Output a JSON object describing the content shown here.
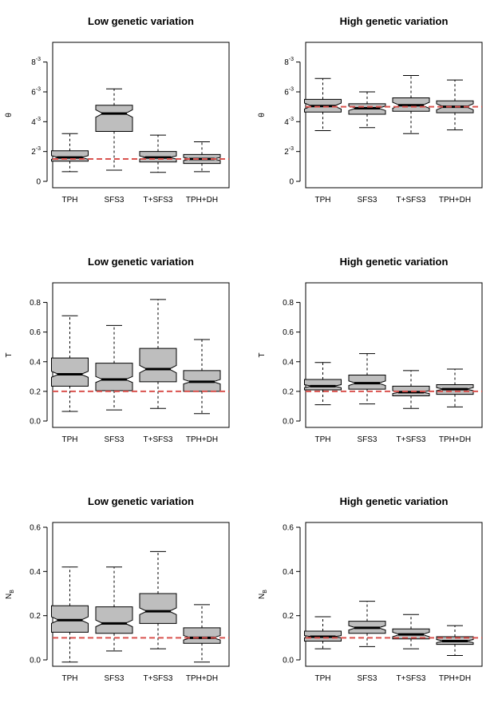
{
  "chart_data": [
    {
      "type": "boxplot",
      "title": "Low genetic variation",
      "ylabel": "θ",
      "ylim": [
        0,
        0.009
      ],
      "yticks": [
        {
          "value": 0,
          "base": "0",
          "exp": ""
        },
        {
          "value": 0.002,
          "base": "2",
          "exp": "-3"
        },
        {
          "value": 0.004,
          "base": "4",
          "exp": "-3"
        },
        {
          "value": 0.006,
          "base": "6",
          "exp": "-3"
        },
        {
          "value": 0.008,
          "base": "8",
          "exp": "-3"
        }
      ],
      "categories": [
        "TPH",
        "SFS3",
        "T+SFS3",
        "TPH+DH"
      ],
      "boxes": [
        {
          "min": 0.00065,
          "q1": 0.00135,
          "median": 0.0016,
          "q3": 0.00205,
          "max": 0.0032,
          "notch": [
            0.00148,
            0.00172
          ]
        },
        {
          "min": 0.00075,
          "q1": 0.00335,
          "median": 0.00455,
          "q3": 0.0051,
          "max": 0.0062,
          "notch": [
            0.0043,
            0.0048
          ]
        },
        {
          "min": 0.0006,
          "q1": 0.0013,
          "median": 0.0016,
          "q3": 0.002,
          "max": 0.0031,
          "notch": [
            0.0015,
            0.0017
          ]
        },
        {
          "min": 0.00065,
          "q1": 0.0012,
          "median": 0.0015,
          "q3": 0.0018,
          "max": 0.00265,
          "notch": [
            0.0014,
            0.0016
          ]
        }
      ],
      "reference": 0.0015,
      "reference_color": "#d9534f"
    },
    {
      "type": "boxplot",
      "title": "High genetic variation",
      "ylabel": "θ",
      "ylim": [
        0,
        0.009
      ],
      "yticks": [
        {
          "value": 0,
          "base": "0",
          "exp": ""
        },
        {
          "value": 0.002,
          "base": "2",
          "exp": "-3"
        },
        {
          "value": 0.004,
          "base": "4",
          "exp": "-3"
        },
        {
          "value": 0.006,
          "base": "6",
          "exp": "-3"
        },
        {
          "value": 0.008,
          "base": "8",
          "exp": "-3"
        }
      ],
      "categories": [
        "TPH",
        "SFS3",
        "T+SFS3",
        "TPH+DH"
      ],
      "boxes": [
        {
          "min": 0.0034,
          "q1": 0.00465,
          "median": 0.00505,
          "q3": 0.0055,
          "max": 0.0069,
          "notch": [
            0.00485,
            0.00525
          ]
        },
        {
          "min": 0.0036,
          "q1": 0.0045,
          "median": 0.0049,
          "q3": 0.0052,
          "max": 0.006,
          "notch": [
            0.00475,
            0.00505
          ]
        },
        {
          "min": 0.0032,
          "q1": 0.0047,
          "median": 0.0051,
          "q3": 0.0056,
          "max": 0.0071,
          "notch": [
            0.0049,
            0.0053
          ]
        },
        {
          "min": 0.00345,
          "q1": 0.0046,
          "median": 0.005,
          "q3": 0.0054,
          "max": 0.0068,
          "notch": [
            0.0048,
            0.0052
          ]
        }
      ],
      "reference": 0.005,
      "reference_color": "#d9534f"
    },
    {
      "type": "boxplot",
      "title": "Low genetic variation",
      "ylabel": "T",
      "ylim": [
        0,
        0.9
      ],
      "yticks": [
        {
          "value": 0,
          "base": "0.0",
          "exp": ""
        },
        {
          "value": 0.2,
          "base": "0.2",
          "exp": ""
        },
        {
          "value": 0.4,
          "base": "0.4",
          "exp": ""
        },
        {
          "value": 0.6,
          "base": "0.6",
          "exp": ""
        },
        {
          "value": 0.8,
          "base": "0.8",
          "exp": ""
        }
      ],
      "categories": [
        "TPH",
        "SFS3",
        "T+SFS3",
        "TPH+DH"
      ],
      "boxes": [
        {
          "min": 0.065,
          "q1": 0.235,
          "median": 0.315,
          "q3": 0.425,
          "max": 0.71,
          "notch": [
            0.295,
            0.335
          ]
        },
        {
          "min": 0.075,
          "q1": 0.205,
          "median": 0.28,
          "q3": 0.39,
          "max": 0.645,
          "notch": [
            0.26,
            0.3
          ]
        },
        {
          "min": 0.085,
          "q1": 0.265,
          "median": 0.35,
          "q3": 0.49,
          "max": 0.82,
          "notch": [
            0.325,
            0.375
          ]
        },
        {
          "min": 0.05,
          "q1": 0.2,
          "median": 0.265,
          "q3": 0.34,
          "max": 0.55,
          "notch": [
            0.25,
            0.28
          ]
        }
      ],
      "reference": 0.2,
      "reference_color": "#d9534f"
    },
    {
      "type": "boxplot",
      "title": "High genetic variation",
      "ylabel": "T",
      "ylim": [
        0,
        0.9
      ],
      "yticks": [
        {
          "value": 0,
          "base": "0.0",
          "exp": ""
        },
        {
          "value": 0.2,
          "base": "0.2",
          "exp": ""
        },
        {
          "value": 0.4,
          "base": "0.4",
          "exp": ""
        },
        {
          "value": 0.6,
          "base": "0.6",
          "exp": ""
        },
        {
          "value": 0.8,
          "base": "0.8",
          "exp": ""
        }
      ],
      "categories": [
        "TPH",
        "SFS3",
        "T+SFS3",
        "TPH+DH"
      ],
      "boxes": [
        {
          "min": 0.11,
          "q1": 0.21,
          "median": 0.235,
          "q3": 0.28,
          "max": 0.395,
          "notch": [
            0.225,
            0.245
          ]
        },
        {
          "min": 0.115,
          "q1": 0.215,
          "median": 0.255,
          "q3": 0.31,
          "max": 0.455,
          "notch": [
            0.24,
            0.27
          ]
        },
        {
          "min": 0.085,
          "q1": 0.17,
          "median": 0.195,
          "q3": 0.235,
          "max": 0.34,
          "notch": [
            0.185,
            0.205
          ]
        },
        {
          "min": 0.095,
          "q1": 0.18,
          "median": 0.215,
          "q3": 0.245,
          "max": 0.35,
          "notch": [
            0.205,
            0.225
          ]
        }
      ],
      "reference": 0.2,
      "reference_color": "#d9534f"
    },
    {
      "type": "boxplot",
      "title": "Low genetic variation",
      "ylabel": "N",
      "ylabel_sub": "B",
      "ylim": [
        0,
        0.6
      ],
      "yticks": [
        {
          "value": 0,
          "base": "0.0",
          "exp": ""
        },
        {
          "value": 0.2,
          "base": "0.2",
          "exp": ""
        },
        {
          "value": 0.4,
          "base": "0.4",
          "exp": ""
        },
        {
          "value": 0.6,
          "base": "0.6",
          "exp": ""
        }
      ],
      "categories": [
        "TPH",
        "SFS3",
        "T+SFS3",
        "TPH+DH"
      ],
      "boxes": [
        {
          "min": -0.01,
          "q1": 0.125,
          "median": 0.18,
          "q3": 0.245,
          "max": 0.42,
          "notch": [
            0.165,
            0.195
          ]
        },
        {
          "min": 0.04,
          "q1": 0.12,
          "median": 0.165,
          "q3": 0.24,
          "max": 0.42,
          "notch": [
            0.15,
            0.18
          ]
        },
        {
          "min": 0.05,
          "q1": 0.165,
          "median": 0.22,
          "q3": 0.3,
          "max": 0.49,
          "notch": [
            0.205,
            0.235
          ]
        },
        {
          "min": -0.01,
          "q1": 0.075,
          "median": 0.1,
          "q3": 0.145,
          "max": 0.25,
          "notch": [
            0.09,
            0.11
          ]
        }
      ],
      "reference": 0.1,
      "reference_color": "#d9534f"
    },
    {
      "type": "boxplot",
      "title": "High genetic variation",
      "ylabel": "N",
      "ylabel_sub": "B",
      "ylim": [
        0,
        0.6
      ],
      "yticks": [
        {
          "value": 0,
          "base": "0.0",
          "exp": ""
        },
        {
          "value": 0.2,
          "base": "0.2",
          "exp": ""
        },
        {
          "value": 0.4,
          "base": "0.4",
          "exp": ""
        },
        {
          "value": 0.6,
          "base": "0.6",
          "exp": ""
        }
      ],
      "categories": [
        "TPH",
        "SFS3",
        "T+SFS3",
        "TPH+DH"
      ],
      "boxes": [
        {
          "min": 0.05,
          "q1": 0.085,
          "median": 0.105,
          "q3": 0.13,
          "max": 0.195,
          "notch": [
            0.1,
            0.11
          ]
        },
        {
          "min": 0.06,
          "q1": 0.12,
          "median": 0.145,
          "q3": 0.175,
          "max": 0.265,
          "notch": [
            0.135,
            0.155
          ]
        },
        {
          "min": 0.05,
          "q1": 0.095,
          "median": 0.115,
          "q3": 0.14,
          "max": 0.205,
          "notch": [
            0.105,
            0.125
          ]
        },
        {
          "min": 0.02,
          "q1": 0.07,
          "median": 0.085,
          "q3": 0.105,
          "max": 0.155,
          "notch": [
            0.078,
            0.092
          ]
        }
      ],
      "reference": 0.1,
      "reference_color": "#d9534f"
    }
  ]
}
